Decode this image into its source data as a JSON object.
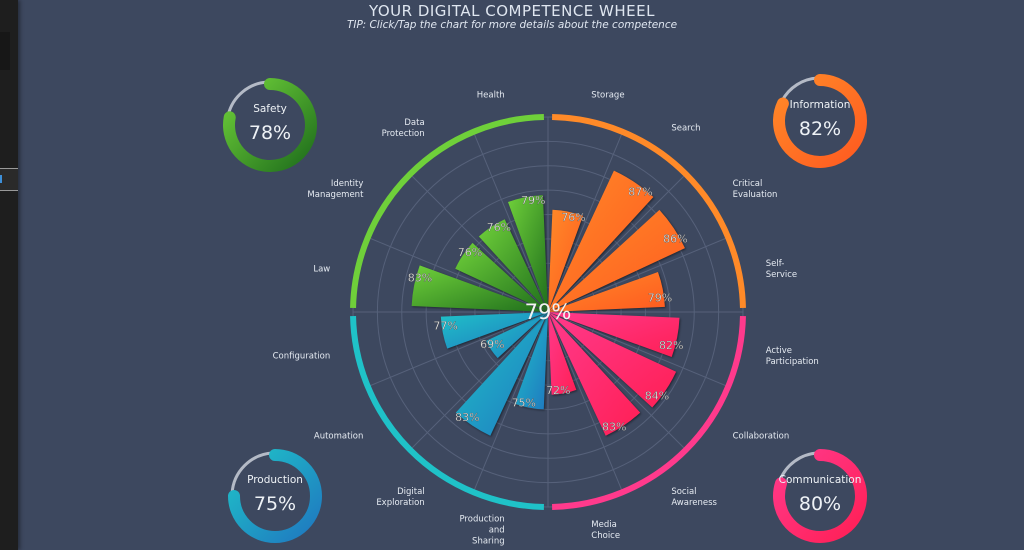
{
  "header": {
    "title": "YOUR DIGITAL COMPETENCE WHEEL",
    "tip": "TIP: Click/Tap the chart for more details about the competence"
  },
  "overall": "79%",
  "colors": {
    "background": "#3d485f",
    "safety": "#6ccf38",
    "information": "#ff9a2e",
    "communication": "#ff2f78",
    "production": "#1fb8c8"
  },
  "areas": [
    {
      "name": "Information",
      "value": 82,
      "label": "82%",
      "color": "#ff8a28",
      "color2": "#ff5a20",
      "competences": [
        {
          "name": [
            "Storage"
          ],
          "value": 76,
          "label": "76%"
        },
        {
          "name": [
            "Search"
          ],
          "value": 87,
          "label": "87%"
        },
        {
          "name": [
            "Critical",
            "Evaluation"
          ],
          "value": 86,
          "label": "86%"
        },
        {
          "name": [
            "Self-",
            "Service"
          ],
          "value": 79,
          "label": "79%"
        }
      ]
    },
    {
      "name": "Communication",
      "value": 80,
      "label": "80%",
      "color": "#ff3a8c",
      "color2": "#ff1f55",
      "competences": [
        {
          "name": [
            "Active",
            "Participation"
          ],
          "value": 82,
          "label": "82%"
        },
        {
          "name": [
            "Collaboration"
          ],
          "value": 84,
          "label": "84%"
        },
        {
          "name": [
            "Social",
            "Awareness"
          ],
          "value": 83,
          "label": "83%"
        },
        {
          "name": [
            "Media",
            "Choice"
          ],
          "value": 72,
          "label": "72%"
        }
      ]
    },
    {
      "name": "Production",
      "value": 75,
      "label": "75%",
      "color": "#1fc2c8",
      "color2": "#1f78c0",
      "competences": [
        {
          "name": [
            "Production",
            "and",
            "Sharing"
          ],
          "value": 75,
          "label": "75%"
        },
        {
          "name": [
            "Digital",
            "Exploration"
          ],
          "value": 83,
          "label": "83%"
        },
        {
          "name": [
            "Automation"
          ],
          "value": 69,
          "label": "69%"
        },
        {
          "name": [
            "Configuration"
          ],
          "value": 77,
          "label": "77%"
        }
      ]
    },
    {
      "name": "Safety",
      "value": 78,
      "label": "78%",
      "color": "#6fd03a",
      "color2": "#1f6e1c",
      "competences": [
        {
          "name": [
            "Law"
          ],
          "value": 83,
          "label": "83%"
        },
        {
          "name": [
            "Identity",
            "Management"
          ],
          "value": 76,
          "label": "76%"
        },
        {
          "name": [
            "Data",
            "Protection"
          ],
          "value": 76,
          "label": "76%"
        },
        {
          "name": [
            "Health"
          ],
          "value": 79,
          "label": "79%"
        }
      ]
    }
  ]
}
